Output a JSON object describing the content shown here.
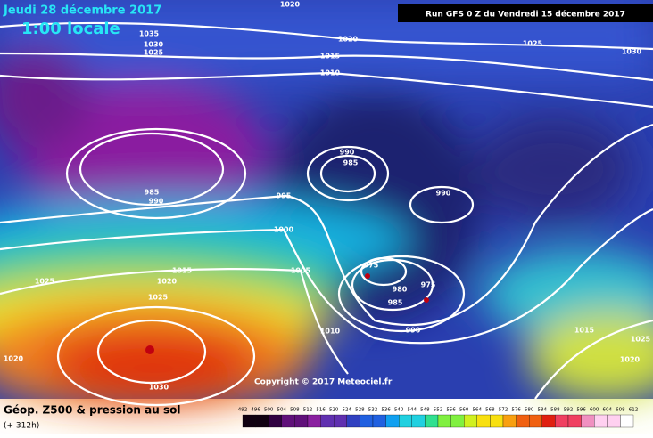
{
  "map": {
    "date": "Jeudi 28 décembre 2017",
    "local_time": "1:00 locale",
    "run": "Run GFS 0 Z du Vendredi 15 décembre 2017",
    "copyright": "Copyright © 2017 Meteociel.fr",
    "isobar_labels": [
      "1020",
      "1035",
      "1030",
      "1025",
      "1020",
      "1015",
      "1010",
      "1025",
      "1030",
      "990",
      "985",
      "985",
      "990",
      "995",
      "990",
      "1000",
      "1015",
      "1025",
      "1020",
      "1025",
      "1005",
      "975",
      "980",
      "975",
      "985",
      "990",
      "1010",
      "1015",
      "1025",
      "1020",
      "1020",
      "1030"
    ]
  },
  "legend": {
    "title": "Géop. Z500 & pression au sol",
    "lead": "(+ 312h)",
    "scale": [
      492,
      496,
      500,
      504,
      508,
      512,
      516,
      520,
      524,
      528,
      532,
      536,
      540,
      544,
      548,
      552,
      556,
      560,
      564,
      568,
      572,
      576,
      580,
      584,
      588,
      592,
      596,
      600,
      604,
      608,
      612
    ]
  }
}
